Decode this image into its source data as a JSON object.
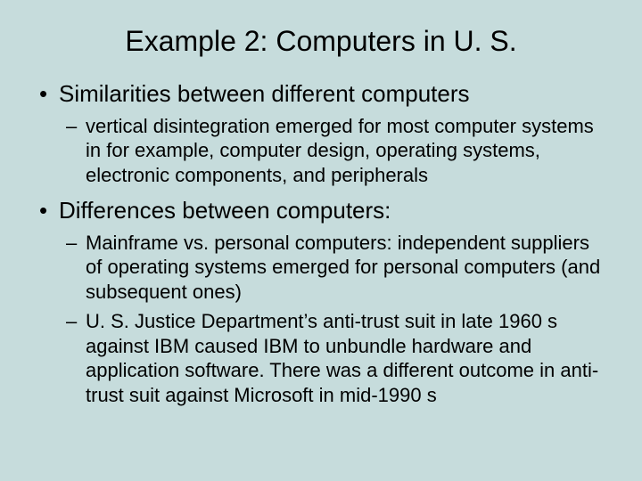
{
  "background_color": "#c6dcdc",
  "text_color": "#000000",
  "font_family": "Arial, Helvetica, sans-serif",
  "title": {
    "text": "Example 2: Computers in U. S.",
    "fontsize": 32,
    "align": "center"
  },
  "bullets": [
    {
      "text": "Similarities between different computers",
      "fontsize": 26,
      "sub": [
        {
          "text": "vertical disintegration emerged for most computer systems in for example, computer design, operating systems, electronic components, and peripherals",
          "fontsize": 22
        }
      ]
    },
    {
      "text": "Differences between computers:",
      "fontsize": 26,
      "sub": [
        {
          "text": "Mainframe vs. personal computers: independent suppliers of operating systems emerged for personal computers (and subsequent ones)",
          "fontsize": 22
        },
        {
          "text": "U. S. Justice Department’s anti-trust suit in late 1960 s against IBM caused IBM to unbundle hardware and application software. There was a different outcome in anti-trust suit against Microsoft in mid-1990 s",
          "fontsize": 22
        }
      ]
    }
  ]
}
